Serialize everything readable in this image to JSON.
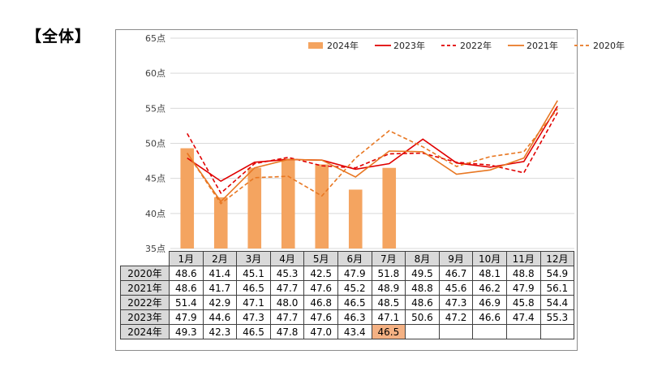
{
  "section_title": "【全体】",
  "chart_data": {
    "type": "bar+line",
    "categories": [
      "1月",
      "2月",
      "3月",
      "4月",
      "5月",
      "6月",
      "7月",
      "8月",
      "9月",
      "10月",
      "11月",
      "12月"
    ],
    "y_ticks": [
      "35点",
      "40点",
      "45点",
      "50点",
      "55点",
      "60点",
      "65点"
    ],
    "ylim": [
      35,
      65
    ],
    "grid": true,
    "legend_position": "top-right",
    "bar_series": {
      "name": "2024年",
      "color": "#f4a460",
      "values": [
        49.3,
        42.3,
        46.5,
        47.8,
        47.0,
        43.4,
        46.5,
        null,
        null,
        null,
        null,
        null
      ]
    },
    "line_series": [
      {
        "name": "2023年",
        "color": "#e00000",
        "dash": "solid",
        "values": [
          47.9,
          44.6,
          47.3,
          47.7,
          47.6,
          46.3,
          47.1,
          50.6,
          47.2,
          46.6,
          47.4,
          55.3
        ]
      },
      {
        "name": "2022年",
        "color": "#e00000",
        "dash": "dashed",
        "values": [
          51.4,
          42.9,
          47.1,
          48.0,
          46.8,
          46.5,
          48.5,
          48.6,
          47.3,
          46.9,
          45.8,
          54.4
        ]
      },
      {
        "name": "2021年",
        "color": "#e87722",
        "dash": "solid",
        "values": [
          48.6,
          41.7,
          46.5,
          47.7,
          47.6,
          45.2,
          48.9,
          48.8,
          45.6,
          46.2,
          47.9,
          56.1
        ]
      },
      {
        "name": "2020年",
        "color": "#e87722",
        "dash": "dashed",
        "values": [
          48.6,
          41.4,
          45.1,
          45.3,
          42.5,
          47.9,
          51.8,
          49.5,
          46.7,
          48.1,
          48.8,
          54.9
        ]
      }
    ],
    "table": {
      "rows": [
        {
          "label": "2020年",
          "values": [
            "48.6",
            "41.4",
            "45.1",
            "45.3",
            "42.5",
            "47.9",
            "51.8",
            "49.5",
            "46.7",
            "48.1",
            "48.8",
            "54.9"
          ]
        },
        {
          "label": "2021年",
          "values": [
            "48.6",
            "41.7",
            "46.5",
            "47.7",
            "47.6",
            "45.2",
            "48.9",
            "48.8",
            "45.6",
            "46.2",
            "47.9",
            "56.1"
          ]
        },
        {
          "label": "2022年",
          "values": [
            "51.4",
            "42.9",
            "47.1",
            "48.0",
            "46.8",
            "46.5",
            "48.5",
            "48.6",
            "47.3",
            "46.9",
            "45.8",
            "54.4"
          ]
        },
        {
          "label": "2023年",
          "values": [
            "47.9",
            "44.6",
            "47.3",
            "47.7",
            "47.6",
            "46.3",
            "47.1",
            "50.6",
            "47.2",
            "46.6",
            "47.4",
            "55.3"
          ]
        },
        {
          "label": "2024年",
          "values": [
            "49.3",
            "42.3",
            "46.5",
            "47.8",
            "47.0",
            "43.4",
            "46.5",
            "",
            "",
            "",
            "",
            ""
          ]
        }
      ],
      "highlight": {
        "row": "2024年",
        "month": "7月",
        "color": "#f4b183"
      }
    }
  }
}
